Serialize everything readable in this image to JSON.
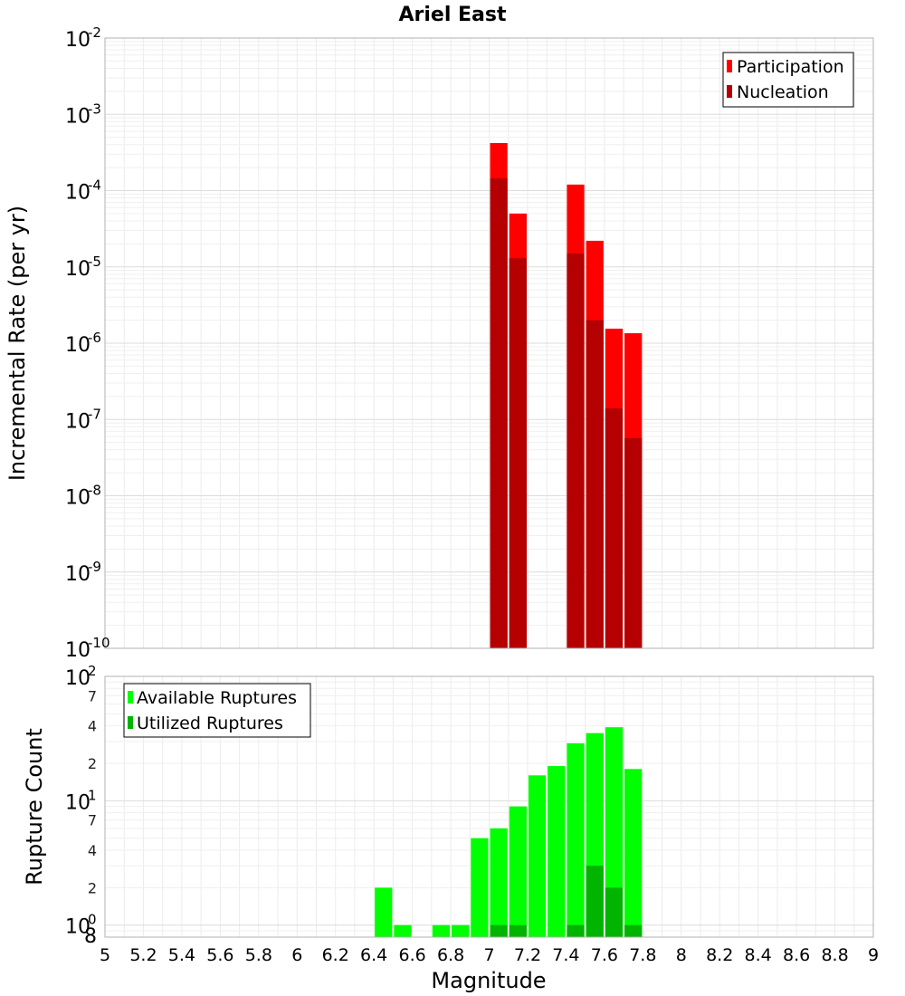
{
  "chart_data": [
    {
      "type": "bar",
      "title": "Ariel East",
      "xlabel": "",
      "ylabel": "Incremental Rate (per yr)",
      "yscale": "log",
      "ylim": [
        1e-10,
        0.01
      ],
      "xlim": [
        5,
        9
      ],
      "bin_width": 0.1,
      "grid": true,
      "legend_position": "top-right",
      "y_tick_labels": [
        {
          "base": "10",
          "exp": "-10"
        },
        {
          "base": "10",
          "exp": "-9"
        },
        {
          "base": "10",
          "exp": "-8"
        },
        {
          "base": "10",
          "exp": "-7"
        },
        {
          "base": "10",
          "exp": "-6"
        },
        {
          "base": "10",
          "exp": "-5"
        },
        {
          "base": "10",
          "exp": "-4"
        },
        {
          "base": "10",
          "exp": "-3"
        },
        {
          "base": "10",
          "exp": "-2"
        }
      ],
      "series": [
        {
          "name": "Participation",
          "color": "#ff0000",
          "x": [
            7.05,
            7.15,
            7.45,
            7.55,
            7.65,
            7.75
          ],
          "values": [
            0.00042,
            5e-05,
            0.00012,
            2.2e-05,
            1.55e-06,
            1.35e-06
          ]
        },
        {
          "name": "Nucleation",
          "color": "#b40000",
          "x": [
            7.05,
            7.15,
            7.45,
            7.55,
            7.65,
            7.75
          ],
          "values": [
            0.000145,
            1.3e-05,
            1.5e-05,
            2e-06,
            1.4e-07,
            5.7e-08
          ]
        }
      ]
    },
    {
      "type": "bar",
      "title": "",
      "xlabel": "Magnitude",
      "ylabel": "Rupture Count",
      "yscale": "log",
      "ylim": [
        0.8,
        100
      ],
      "xlim": [
        5,
        9
      ],
      "bin_width": 0.1,
      "grid": true,
      "legend_position": "top-left",
      "x_ticks": [
        "5",
        "5.2",
        "5.4",
        "5.6",
        "5.8",
        "6",
        "6.2",
        "6.4",
        "6.6",
        "6.8",
        "7",
        "7.2",
        "7.4",
        "7.6",
        "7.8",
        "8",
        "8.2",
        "8.4",
        "8.6",
        "8.8",
        "9"
      ],
      "y_major_labels": [
        {
          "value": 1,
          "base": "10",
          "exp": "0"
        },
        {
          "value": 10,
          "base": "10",
          "exp": "1"
        },
        {
          "value": 100,
          "base": "10",
          "exp": "2"
        }
      ],
      "y_minor_labels": [
        {
          "value": 0.8,
          "label": "8"
        },
        {
          "value": 2,
          "label": "2"
        },
        {
          "value": 4,
          "label": "4"
        },
        {
          "value": 7,
          "label": "7"
        },
        {
          "value": 20,
          "label": "2"
        },
        {
          "value": 40,
          "label": "4"
        },
        {
          "value": 70,
          "label": "7"
        }
      ],
      "series": [
        {
          "name": "Available Ruptures",
          "color": "#00ff00",
          "x": [
            6.45,
            6.55,
            6.75,
            6.85,
            6.95,
            7.05,
            7.15,
            7.25,
            7.35,
            7.45,
            7.55,
            7.65,
            7.75
          ],
          "values": [
            2,
            1,
            1,
            1,
            5,
            6,
            9,
            16,
            19,
            29,
            35,
            39,
            18
          ]
        },
        {
          "name": "Utilized Ruptures",
          "color": "#00b400",
          "x": [
            7.05,
            7.15,
            7.45,
            7.55,
            7.65,
            7.75
          ],
          "values": [
            1,
            1,
            1,
            3,
            2,
            1
          ]
        }
      ]
    }
  ]
}
